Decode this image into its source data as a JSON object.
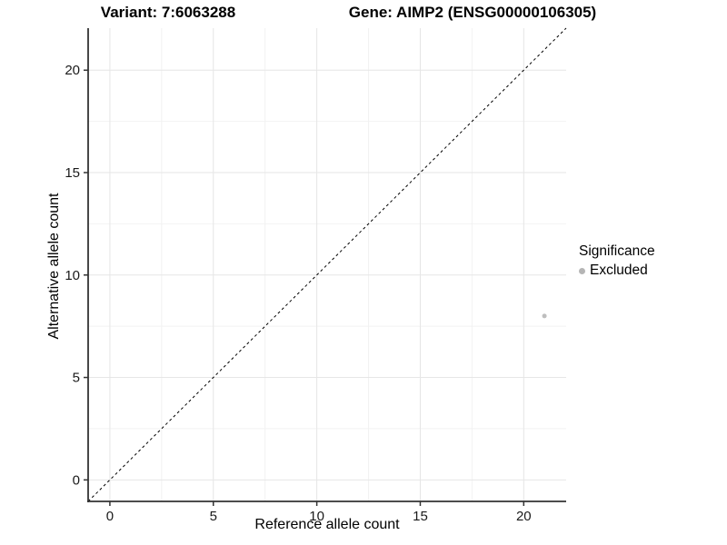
{
  "titles": {
    "variant": "Variant: 7:6063288",
    "gene": "Gene: AIMP2 (ENSG00000106305)"
  },
  "chart_data": {
    "type": "scatter",
    "title": "Variant: 7:6063288   Gene: AIMP2 (ENSG00000106305)",
    "xlabel": "Reference allele count",
    "ylabel": "Alternative allele count",
    "xlim": [
      -1.05,
      22.05
    ],
    "ylim": [
      -1.05,
      22.05
    ],
    "x_ticks": [
      0,
      5,
      10,
      15,
      20
    ],
    "y_ticks": [
      0,
      5,
      10,
      15,
      20
    ],
    "x_minor_ticks": [
      2.5,
      7.5,
      12.5,
      17.5
    ],
    "y_minor_ticks": [
      2.5,
      7.5,
      12.5,
      17.5
    ],
    "grid": true,
    "identity_line": {
      "style": "dashed",
      "x1": -1.05,
      "y1": -1.05,
      "x2": 22.05,
      "y2": 22.05
    },
    "series": [
      {
        "name": "Excluded",
        "points": [
          {
            "x": 21,
            "y": 8
          }
        ]
      }
    ],
    "legend": {
      "title": "Significance",
      "position": "right",
      "entries": [
        {
          "label": "Excluded"
        }
      ]
    }
  },
  "colors": {
    "point": "#bebebe",
    "legend_dot": "#b5b5b5",
    "identity_line": "#000000",
    "axis_line": "#333333",
    "tick_mark": "#333333",
    "tick_label": "#1a1a1a",
    "grid_major": "#e6e6e6",
    "grid_minor": "#f2f2f2",
    "panel_background": "#ffffff"
  }
}
